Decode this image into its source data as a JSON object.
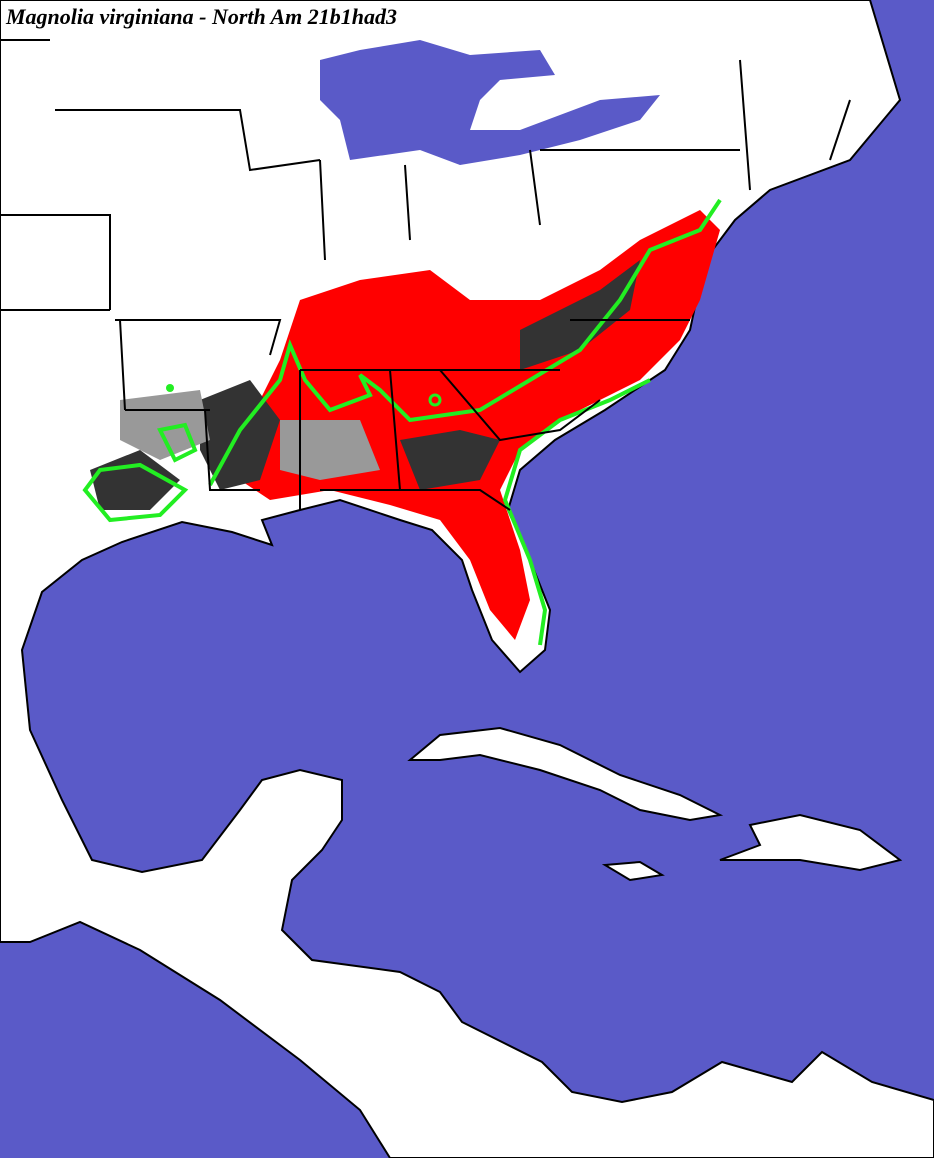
{
  "header": {
    "title": "Magnolia virginiana - North Am 21b1had3"
  }
}
